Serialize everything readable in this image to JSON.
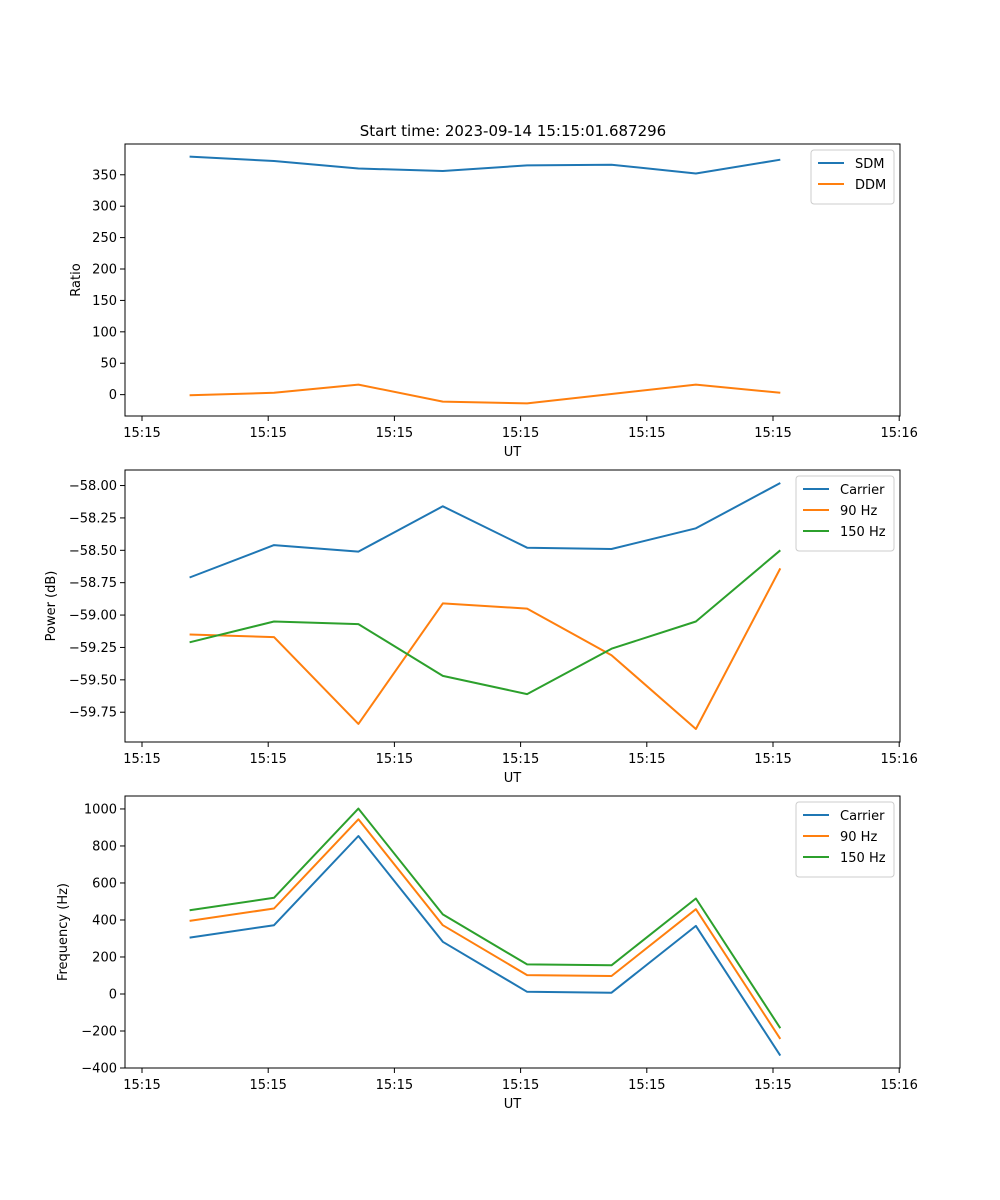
{
  "figure_title": "Start time: 2023-09-14 15:15:01.687296",
  "chart_data": [
    {
      "type": "line",
      "xlabel": "UT",
      "ylabel": "Ratio",
      "xlim": [
        0,
        9
      ],
      "ylim": [
        -34,
        399
      ],
      "x_tick_labels": [
        "15:15",
        "15:15",
        "15:15",
        "15:15",
        "15:15",
        "15:15",
        "15:16"
      ],
      "y_ticks": [
        0,
        50,
        100,
        150,
        200,
        250,
        300,
        350
      ],
      "y_tick_labels": [
        "0",
        "50",
        "100",
        "150",
        "200",
        "250",
        "300",
        "350"
      ],
      "x": [
        0.75,
        1.73,
        2.71,
        3.69,
        4.67,
        5.65,
        6.63,
        7.61
      ],
      "legend": "top-right",
      "series": [
        {
          "name": "SDM",
          "color": "#1f77b4",
          "values": [
            379,
            372,
            360,
            356,
            365,
            366,
            352,
            374
          ]
        },
        {
          "name": "DDM",
          "color": "#ff7f0e",
          "values": [
            -1,
            3,
            16,
            -11,
            -14,
            1,
            16,
            3
          ]
        }
      ]
    },
    {
      "type": "line",
      "xlabel": "UT",
      "ylabel": "Power (dB)",
      "xlim": [
        0,
        9
      ],
      "ylim": [
        -59.98,
        -57.88
      ],
      "x_tick_labels": [
        "15:15",
        "15:15",
        "15:15",
        "15:15",
        "15:15",
        "15:15",
        "15:16"
      ],
      "y_ticks": [
        -59.75,
        -59.5,
        -59.25,
        -59.0,
        -58.75,
        -58.5,
        -58.25,
        -58.0
      ],
      "y_tick_labels": [
        "−59.75",
        "−59.50",
        "−59.25",
        "−59.00",
        "−58.75",
        "−58.50",
        "−58.25",
        "−58.00"
      ],
      "x": [
        0.75,
        1.73,
        2.71,
        3.69,
        4.67,
        5.65,
        6.63,
        7.61
      ],
      "legend": "top-right",
      "series": [
        {
          "name": "Carrier",
          "color": "#1f77b4",
          "values": [
            -58.71,
            -58.46,
            -58.51,
            -58.16,
            -58.48,
            -58.49,
            -58.33,
            -57.98
          ]
        },
        {
          "name": "90 Hz",
          "color": "#ff7f0e",
          "values": [
            -59.15,
            -59.17,
            -59.84,
            -58.91,
            -58.95,
            -59.31,
            -59.88,
            -58.64
          ]
        },
        {
          "name": "150 Hz",
          "color": "#2ca02c",
          "values": [
            -59.21,
            -59.05,
            -59.07,
            -59.47,
            -59.61,
            -59.26,
            -59.05,
            -58.5
          ]
        }
      ]
    },
    {
      "type": "line",
      "xlabel": "UT",
      "ylabel": "Frequency (Hz)",
      "xlim": [
        0,
        9
      ],
      "ylim": [
        -400,
        1070
      ],
      "x_tick_labels": [
        "15:15",
        "15:15",
        "15:15",
        "15:15",
        "15:15",
        "15:15",
        "15:16"
      ],
      "y_ticks": [
        -400,
        -200,
        0,
        200,
        400,
        600,
        800,
        1000
      ],
      "y_tick_labels": [
        "−400",
        "−200",
        "0",
        "200",
        "400",
        "600",
        "800",
        "1000"
      ],
      "x": [
        0.75,
        1.73,
        2.71,
        3.69,
        4.67,
        5.65,
        6.63,
        7.61
      ],
      "legend": "top-right",
      "series": [
        {
          "name": "Carrier",
          "color": "#1f77b4",
          "values": [
            305,
            372,
            854,
            282,
            12,
            7,
            368,
            -333
          ]
        },
        {
          "name": "90 Hz",
          "color": "#ff7f0e",
          "values": [
            395,
            462,
            944,
            372,
            102,
            97,
            458,
            -243
          ]
        },
        {
          "name": "150 Hz",
          "color": "#2ca02c",
          "values": [
            453,
            520,
            1002,
            430,
            160,
            155,
            516,
            -185
          ]
        }
      ]
    }
  ]
}
